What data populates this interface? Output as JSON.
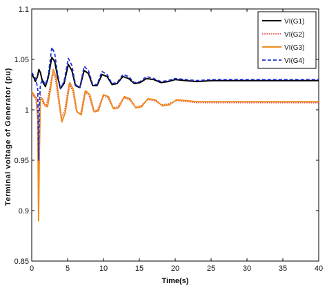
{
  "chart_data": {
    "type": "line",
    "xlabel": "Time(s)",
    "ylabel": "Terminal voltage of Generator (pu)",
    "xlim": [
      0,
      40
    ],
    "ylim": [
      0.85,
      1.1
    ],
    "xticks": [
      0,
      5,
      10,
      15,
      20,
      25,
      30,
      35,
      40
    ],
    "yticks": [
      0.85,
      0.9,
      0.95,
      1,
      1.05,
      1.1
    ],
    "ytick_labels": [
      "0.85",
      "0.9",
      "0.95",
      "1",
      "1.05",
      "1.1"
    ],
    "grid": false,
    "legend_position": "top-right",
    "series": [
      {
        "name": "VI(G1)",
        "color": "#000000",
        "dash": "solid",
        "points": [
          [
            0,
            1.035
          ],
          [
            0.3,
            1.032
          ],
          [
            0.5,
            1.028
          ],
          [
            0.8,
            1.033
          ],
          [
            1.0,
            1.04
          ],
          [
            1.2,
            1.037
          ],
          [
            1.5,
            1.028
          ],
          [
            1.9,
            1.023
          ],
          [
            2.3,
            1.032
          ],
          [
            2.8,
            1.052
          ],
          [
            3.2,
            1.048
          ],
          [
            3.6,
            1.033
          ],
          [
            4.0,
            1.021
          ],
          [
            4.5,
            1.026
          ],
          [
            5.1,
            1.045
          ],
          [
            5.6,
            1.039
          ],
          [
            6.1,
            1.024
          ],
          [
            6.7,
            1.022
          ],
          [
            7.3,
            1.039
          ],
          [
            7.9,
            1.036
          ],
          [
            8.5,
            1.024
          ],
          [
            9.1,
            1.024
          ],
          [
            9.8,
            1.035
          ],
          [
            10.5,
            1.033
          ],
          [
            11.2,
            1.025
          ],
          [
            11.9,
            1.026
          ],
          [
            12.7,
            1.033
          ],
          [
            13.5,
            1.031
          ],
          [
            14.3,
            1.026
          ],
          [
            15.1,
            1.027
          ],
          [
            16.0,
            1.031
          ],
          [
            17.0,
            1.03
          ],
          [
            18.0,
            1.027
          ],
          [
            19.0,
            1.028
          ],
          [
            20.0,
            1.03
          ],
          [
            21.5,
            1.029
          ],
          [
            23.0,
            1.028
          ],
          [
            25.0,
            1.029
          ],
          [
            30.0,
            1.029
          ],
          [
            35.0,
            1.029
          ],
          [
            40.0,
            1.029
          ]
        ]
      },
      {
        "name": "VI(G2)",
        "color": "#e03030",
        "dash": "dotted",
        "points": [
          [
            0,
            1.016
          ],
          [
            0.3,
            1.013
          ],
          [
            0.6,
            1.01
          ],
          [
            0.8,
            1.013
          ],
          [
            1.0,
            1.017
          ],
          [
            1.3,
            1.014
          ],
          [
            1.6,
            1.006
          ],
          [
            2.0,
            1.003
          ],
          [
            2.4,
            1.017
          ],
          [
            2.9,
            1.037
          ],
          [
            3.3,
            1.03
          ],
          [
            3.7,
            1.01
          ],
          [
            4.1,
            0.991
          ],
          [
            4.6,
            1.0
          ],
          [
            5.2,
            1.026
          ],
          [
            5.7,
            1.019
          ],
          [
            6.2,
            0.999
          ],
          [
            6.8,
            0.996
          ],
          [
            7.4,
            1.018
          ],
          [
            8.0,
            1.014
          ],
          [
            8.6,
            0.999
          ],
          [
            9.2,
            1.0
          ],
          [
            9.9,
            1.014
          ],
          [
            10.6,
            1.012
          ],
          [
            11.3,
            1.002
          ],
          [
            12.0,
            1.003
          ],
          [
            12.8,
            1.012
          ],
          [
            13.6,
            1.01
          ],
          [
            14.4,
            1.003
          ],
          [
            15.2,
            1.004
          ],
          [
            16.1,
            1.01
          ],
          [
            17.1,
            1.009
          ],
          [
            18.1,
            1.005
          ],
          [
            19.1,
            1.006
          ],
          [
            20.1,
            1.009
          ],
          [
            21.6,
            1.008
          ],
          [
            23.0,
            1.007
          ],
          [
            25.0,
            1.007
          ],
          [
            30.0,
            1.007
          ],
          [
            35.0,
            1.007
          ],
          [
            40.0,
            1.007
          ]
        ]
      },
      {
        "name": "VI(G3)",
        "color": "#f08c1e",
        "dash": "solid",
        "points": [
          [
            0,
            1.018
          ],
          [
            0.3,
            1.015
          ],
          [
            0.6,
            1.012
          ],
          [
            0.85,
            0.99
          ],
          [
            0.95,
            0.89
          ],
          [
            1.05,
            0.95
          ],
          [
            1.2,
            1.01
          ],
          [
            1.5,
            1.011
          ],
          [
            1.8,
            1.005
          ],
          [
            2.2,
            1.003
          ],
          [
            2.6,
            1.02
          ],
          [
            3.0,
            1.04
          ],
          [
            3.4,
            1.032
          ],
          [
            3.8,
            1.01
          ],
          [
            4.2,
            0.988
          ],
          [
            4.7,
            0.998
          ],
          [
            5.3,
            1.027
          ],
          [
            5.8,
            1.02
          ],
          [
            6.3,
            0.998
          ],
          [
            6.9,
            0.995
          ],
          [
            7.5,
            1.019
          ],
          [
            8.1,
            1.015
          ],
          [
            8.7,
            0.998
          ],
          [
            9.3,
            0.999
          ],
          [
            10.0,
            1.015
          ],
          [
            10.7,
            1.013
          ],
          [
            11.4,
            1.001
          ],
          [
            12.1,
            1.002
          ],
          [
            12.9,
            1.013
          ],
          [
            13.7,
            1.011
          ],
          [
            14.5,
            1.002
          ],
          [
            15.3,
            1.003
          ],
          [
            16.2,
            1.011
          ],
          [
            17.2,
            1.01
          ],
          [
            18.2,
            1.004
          ],
          [
            19.2,
            1.005
          ],
          [
            20.2,
            1.01
          ],
          [
            21.7,
            1.009
          ],
          [
            23.0,
            1.008
          ],
          [
            25.0,
            1.008
          ],
          [
            30.0,
            1.008
          ],
          [
            35.0,
            1.008
          ],
          [
            40.0,
            1.008
          ]
        ]
      },
      {
        "name": "VI(G4)",
        "color": "#1f2fd6",
        "dash": "dashed",
        "points": [
          [
            0,
            1.037
          ],
          [
            0.3,
            1.034
          ],
          [
            0.6,
            1.03
          ],
          [
            0.85,
            1.02
          ],
          [
            0.95,
            0.95
          ],
          [
            1.05,
            1.0
          ],
          [
            1.2,
            1.025
          ],
          [
            1.5,
            1.03
          ],
          [
            1.9,
            1.025
          ],
          [
            2.3,
            1.034
          ],
          [
            2.8,
            1.062
          ],
          [
            3.2,
            1.056
          ],
          [
            3.6,
            1.036
          ],
          [
            4.0,
            1.021
          ],
          [
            4.5,
            1.028
          ],
          [
            5.1,
            1.051
          ],
          [
            5.6,
            1.044
          ],
          [
            6.1,
            1.025
          ],
          [
            6.7,
            1.022
          ],
          [
            7.3,
            1.043
          ],
          [
            7.9,
            1.039
          ],
          [
            8.5,
            1.025
          ],
          [
            9.1,
            1.025
          ],
          [
            9.8,
            1.038
          ],
          [
            10.5,
            1.035
          ],
          [
            11.2,
            1.026
          ],
          [
            11.9,
            1.027
          ],
          [
            12.7,
            1.035
          ],
          [
            13.5,
            1.033
          ],
          [
            14.3,
            1.027
          ],
          [
            15.1,
            1.028
          ],
          [
            16.0,
            1.033
          ],
          [
            17.0,
            1.031
          ],
          [
            18.0,
            1.028
          ],
          [
            19.0,
            1.029
          ],
          [
            20.0,
            1.031
          ],
          [
            21.5,
            1.03
          ],
          [
            23.0,
            1.029
          ],
          [
            25.0,
            1.03
          ],
          [
            30.0,
            1.03
          ],
          [
            35.0,
            1.03
          ],
          [
            40.0,
            1.03
          ]
        ]
      }
    ]
  }
}
